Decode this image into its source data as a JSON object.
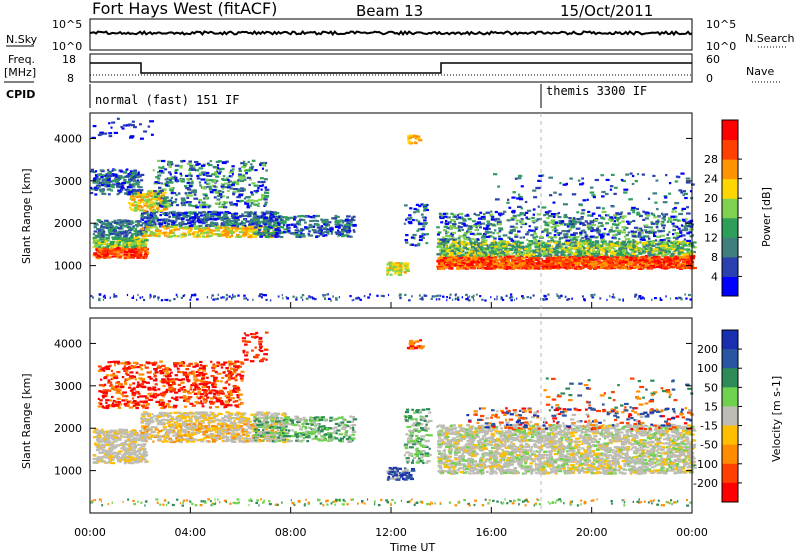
{
  "header": {
    "title": "Fort Hays West (fitACF)",
    "beam": "Beam 13",
    "date": "15/Oct/2011"
  },
  "top_panels": {
    "nsky_label": "N.Sky",
    "nsky_ticks": [
      "10^5",
      "10^0"
    ],
    "nsearch_label": "N.Search",
    "nsearch_ticks": [
      "10^5",
      "10^0"
    ],
    "freq_label_1": "Freq.",
    "freq_label_2": "[MHz]",
    "freq_ticks": [
      "18",
      "8"
    ],
    "nave_label": "Nave",
    "nave_ticks": [
      "60",
      "0"
    ],
    "cpid_label": "CPID",
    "cpid_text_1": "normal (fast) 151 IF",
    "cpid_text_2": "themis 3300 IF"
  },
  "chart_data": [
    {
      "type": "heatmap",
      "title": "",
      "ylabel": "Slant Range [km]",
      "ylim": [
        0,
        4600
      ],
      "yticks": [
        "1000",
        "2000",
        "3000",
        "4000"
      ],
      "colorbar_label": "Power [dB]",
      "colorbar_ticks": [
        "4",
        "8",
        "12",
        "16",
        "20",
        "24",
        "28"
      ],
      "colorbar_colors": [
        "#0000ff",
        "#2a3fb0",
        "#3f7f7f",
        "#2e9e5a",
        "#7fd24f",
        "#ffd700",
        "#ff9400",
        "#ff4000",
        "#ff0000"
      ]
    },
    {
      "type": "heatmap",
      "title": "",
      "ylabel": "Slant Range [km]",
      "ylim": [
        0,
        4600
      ],
      "yticks": [
        "1000",
        "2000",
        "3000",
        "4000"
      ],
      "colorbar_label": "Velocity [m s-1]",
      "colorbar_ticks": [
        "200",
        "100",
        "50",
        "15",
        "-15",
        "-50",
        "-100",
        "-200"
      ],
      "colorbar_colors": [
        "#1a2fb0",
        "#2a55a0",
        "#2e8b57",
        "#6fd24f",
        "#bdbdb5",
        "#ffbf00",
        "#ff8c00",
        "#ff4000",
        "#ff0000"
      ]
    }
  ],
  "xaxis": {
    "label": "Time UT",
    "ticks": [
      "00:00",
      "04:00",
      "08:00",
      "12:00",
      "16:00",
      "20:00",
      "00:00"
    ]
  }
}
